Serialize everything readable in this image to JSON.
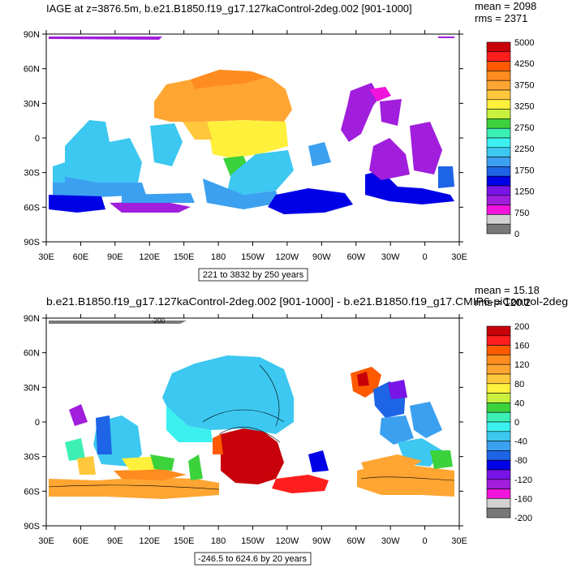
{
  "chart_data": [
    {
      "type": "heatmap",
      "title": "IAGE at z=3876.5m, b.e21.B1850.f19_g17.127kaControl-2deg.002 [901-1000]",
      "stats": [
        "mean = 2098",
        "rms = 2371"
      ],
      "x_ticks": [
        "30E",
        "60E",
        "90E",
        "120E",
        "150E",
        "180",
        "150W",
        "120W",
        "90W",
        "60W",
        "30W",
        "0",
        "30E"
      ],
      "y_ticks": [
        "90N",
        "60N",
        "30N",
        "0",
        "30S",
        "60S",
        "90S"
      ],
      "info_box": "221 to 3832 by 250 years",
      "colorbar_labels": [
        "5000",
        "4250",
        "3750",
        "3250",
        "2750",
        "2250",
        "1750",
        "1250",
        "750",
        "0"
      ],
      "colorbar_colors": [
        "#c8000a",
        "#ff1e1e",
        "#ff5a00",
        "#ff8c1e",
        "#ffa532",
        "#ffc83c",
        "#fff03c",
        "#c8f03c",
        "#3cd23c",
        "#3cf0b4",
        "#3cf0f0",
        "#3cc8f0",
        "#3ca0f0",
        "#1e64e6",
        "#0000e6",
        "#7814e6",
        "#a01edc",
        "#f014dc",
        "#d2d2d2",
        "#787878"
      ],
      "regions": [
        {
          "label": "north-pacific",
          "value": 3750,
          "color": "#ffa532"
        },
        {
          "label": "equatorial-pacific",
          "value": 3250,
          "color": "#fff03c"
        },
        {
          "label": "south-pacific",
          "value": 1750,
          "color": "#3cc8f0"
        },
        {
          "label": "indian-ocean",
          "value": 1750,
          "color": "#3cc8f0"
        },
        {
          "label": "north-atlantic",
          "value": 750,
          "color": "#a01edc"
        },
        {
          "label": "south-atlantic",
          "value": 750,
          "color": "#a01edc"
        },
        {
          "label": "southern-ocean",
          "value": 1250,
          "color": "#0000e6"
        }
      ]
    },
    {
      "type": "heatmap",
      "title": "b.e21.B1850.f19_g17.127kaControl-2deg.002 [901-1000] - b.e21.B1850.f19_g17.CMIP6-piControl-2deg",
      "stats": [
        "mean = 15.18",
        "rms = 120.2"
      ],
      "x_ticks": [
        "30E",
        "60E",
        "90E",
        "120E",
        "150E",
        "180",
        "150W",
        "120W",
        "90W",
        "60W",
        "30W",
        "0",
        "30E"
      ],
      "y_ticks": [
        "90N",
        "60N",
        "30N",
        "0",
        "30S",
        "60S",
        "90S"
      ],
      "info_box": "-246.5 to 624.6 by 20 years",
      "contour_label": "-200",
      "colorbar_labels": [
        "200",
        "160",
        "120",
        "80",
        "40",
        "0",
        "-40",
        "-80",
        "-120",
        "-160",
        "-200"
      ],
      "colorbar_colors": [
        "#c8000a",
        "#ff1e1e",
        "#ff5a00",
        "#ff8c1e",
        "#ffa532",
        "#ffc83c",
        "#fff03c",
        "#c8f03c",
        "#3cd23c",
        "#3cf0b4",
        "#3cf0f0",
        "#3cc8f0",
        "#3ca0f0",
        "#1e64e6",
        "#0000e6",
        "#7814e6",
        "#a01edc",
        "#f014dc",
        "#d2d2d2",
        "#787878"
      ],
      "regions": [
        {
          "label": "north-pacific",
          "value": -40,
          "color": "#3cc8f0"
        },
        {
          "label": "south-central-pacific",
          "value": 200,
          "color": "#c8000a"
        },
        {
          "label": "southern-ocean",
          "value": 80,
          "color": "#ffa532"
        },
        {
          "label": "indian-ocean",
          "value": -40,
          "color": "#3cc8f0"
        },
        {
          "label": "north-atlantic",
          "value": -100,
          "color": "#1e64e6"
        },
        {
          "label": "subpolar-atlantic",
          "value": 140,
          "color": "#ff5a00"
        }
      ]
    }
  ]
}
